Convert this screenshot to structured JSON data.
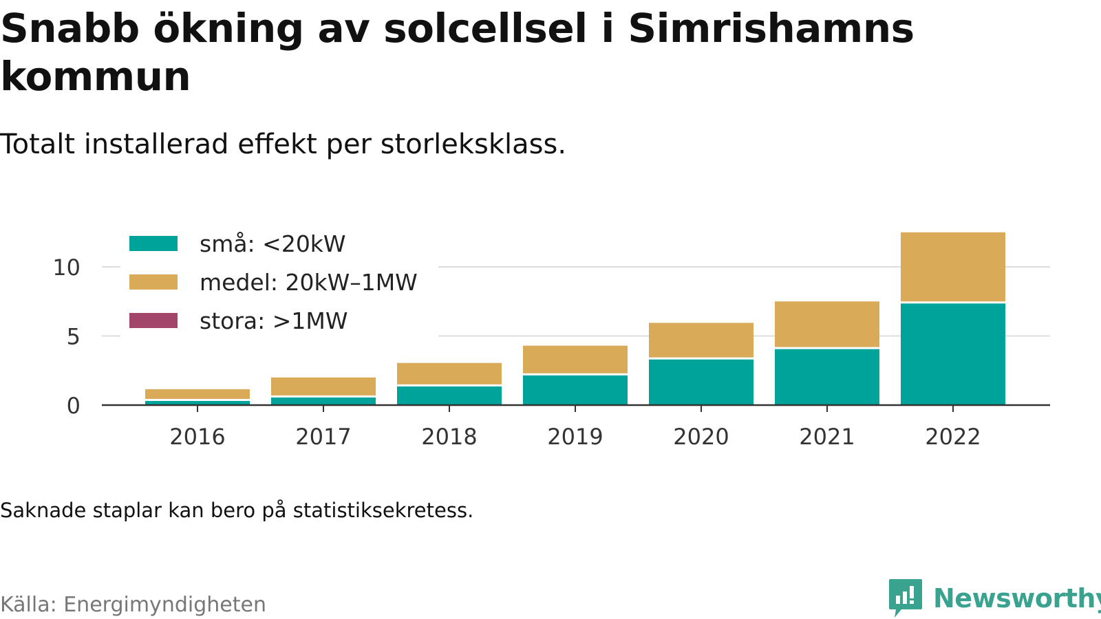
{
  "title": "Snabb ökning av solcellsel i Simrishamns kommun",
  "subtitle": "Totalt installerad effekt per storleksklass.",
  "note": "Saknade staplar kan bero på statistiksekretess.",
  "source": "Källa: Energimyndigheten",
  "brand": {
    "name": "Newsworthy",
    "color": "#3aa38f",
    "icon": "newsworthy-logo-icon"
  },
  "chart_data": {
    "type": "bar",
    "stacked": true,
    "categories": [
      "2016",
      "2017",
      "2018",
      "2019",
      "2020",
      "2021",
      "2022"
    ],
    "series": [
      {
        "name": "små: <20kW",
        "color": "#00a39a",
        "values": [
          0.3,
          0.55,
          1.35,
          2.15,
          3.3,
          4.05,
          7.35
        ]
      },
      {
        "name": "medel: 20kW–1MW",
        "color": "#d9ab59",
        "values": [
          0.85,
          1.45,
          1.7,
          2.15,
          2.65,
          3.45,
          5.15
        ]
      },
      {
        "name": "stora: >1MW",
        "color": "#a3446b",
        "values": [
          0,
          0,
          0,
          0,
          0,
          0,
          0
        ]
      }
    ],
    "yticks": [
      0,
      5,
      10
    ],
    "ylim": [
      0,
      13
    ],
    "grid": true,
    "legend_position": "top-left"
  }
}
